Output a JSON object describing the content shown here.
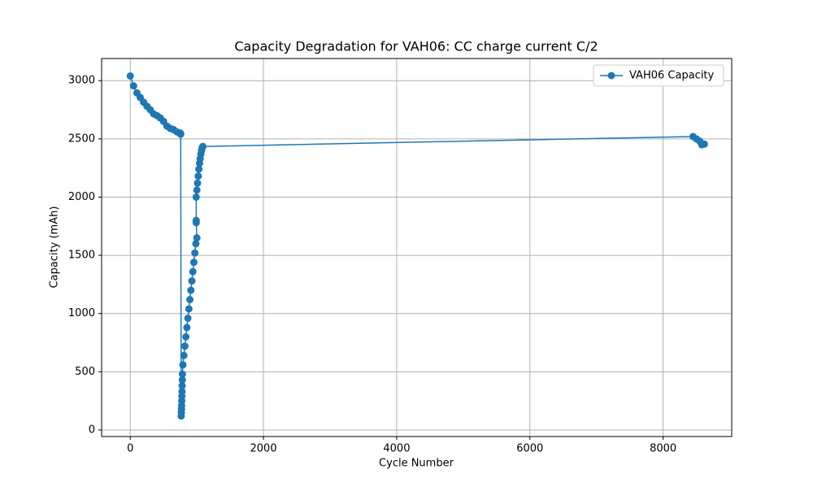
{
  "chart_data": {
    "type": "line",
    "title": "Capacity Degradation for VAH06: CC charge current C/2",
    "x_label": "Cycle Number",
    "y_label": "Capacity (mAh)",
    "x": [
      0,
      50,
      100,
      150,
      200,
      250,
      300,
      350,
      400,
      450,
      500,
      550,
      600,
      650,
      700,
      750,
      757,
      765,
      767,
      769,
      771,
      773,
      775,
      777,
      779,
      781,
      783,
      790,
      805,
      820,
      835,
      850,
      865,
      880,
      895,
      910,
      925,
      940,
      955,
      970,
      985,
      1000,
      990,
      990,
      990,
      1000,
      1010,
      1020,
      1030,
      1040,
      1050,
      1060,
      1070,
      1080,
      1090,
      8450,
      8500,
      8550,
      8580,
      8620
    ],
    "series": [
      {
        "name": "VAH06 Capacity",
        "color": "#1f77b4",
        "values": [
          3040,
          2955,
          2895,
          2855,
          2815,
          2780,
          2750,
          2715,
          2700,
          2680,
          2650,
          2610,
          2590,
          2580,
          2560,
          2550,
          2540,
          120,
          150,
          180,
          210,
          250,
          290,
          330,
          380,
          430,
          480,
          560,
          640,
          720,
          800,
          880,
          960,
          1040,
          1120,
          1200,
          1280,
          1360,
          1440,
          1520,
          1600,
          1650,
          1800,
          1780,
          2000,
          2060,
          2120,
          2180,
          2240,
          2290,
          2330,
          2370,
          2400,
          2425,
          2435,
          2520,
          2500,
          2480,
          2450,
          2455
        ]
      }
    ],
    "xlim": [
      -430,
      9030
    ],
    "ylim": [
      -56,
      3190
    ],
    "xticks": [
      0,
      2000,
      4000,
      6000,
      8000
    ],
    "yticks": [
      0,
      500,
      1000,
      1500,
      2000,
      2500,
      3000
    ],
    "grid": true,
    "legend": "upper right"
  }
}
